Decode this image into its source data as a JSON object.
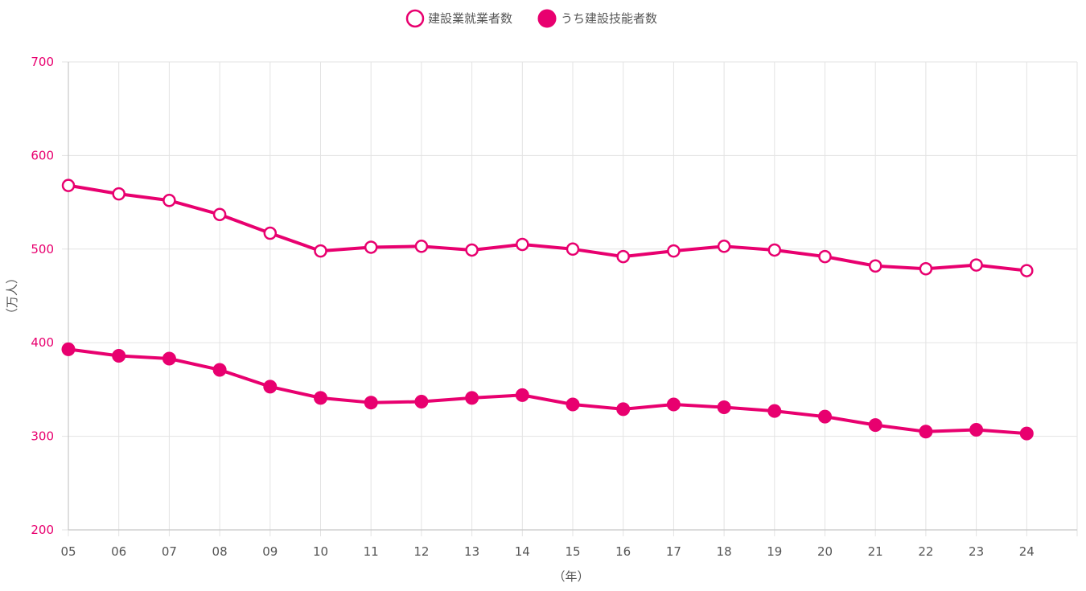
{
  "chart_data": {
    "type": "line",
    "categories": [
      "05",
      "06",
      "07",
      "08",
      "09",
      "10",
      "11",
      "12",
      "13",
      "14",
      "15",
      "16",
      "17",
      "18",
      "19",
      "20",
      "21",
      "22",
      "23",
      "24"
    ],
    "series": [
      {
        "name": "建設業就業者数",
        "marker": "hollow-circle",
        "color": "#e8006f",
        "values": [
          568,
          559,
          552,
          537,
          517,
          498,
          502,
          503,
          499,
          505,
          500,
          492,
          498,
          503,
          499,
          492,
          482,
          479,
          483,
          477
        ]
      },
      {
        "name": "うち建設技能者数",
        "marker": "filled-circle",
        "color": "#e8006f",
        "values": [
          393,
          386,
          383,
          371,
          353,
          341,
          336,
          337,
          341,
          344,
          334,
          329,
          334,
          331,
          327,
          321,
          312,
          305,
          307,
          303
        ]
      }
    ],
    "title": "",
    "xlabel": "（年）",
    "ylabel": "（万人）",
    "ylim": [
      200,
      700
    ],
    "yticks": [
      200,
      300,
      400,
      500,
      600,
      700
    ],
    "grid": true,
    "legend_position": "top-center"
  },
  "colors": {
    "line": "#e8006f",
    "ytick": "#e8006f",
    "xtick": "#555555",
    "grid": "#e3e3e3"
  }
}
